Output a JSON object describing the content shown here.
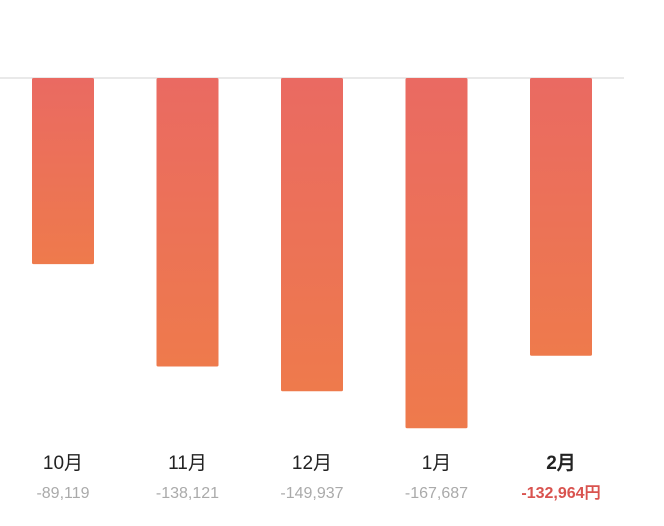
{
  "chart_data": {
    "type": "bar",
    "categories": [
      "10月",
      "11月",
      "12月",
      "1月",
      "2月"
    ],
    "values": [
      -89119,
      -138121,
      -149937,
      -167687,
      -132964
    ],
    "value_labels": [
      "-89,119",
      "-138,121",
      "-149,937",
      "-167,687",
      "-132,964円"
    ],
    "color_top": "#ea6a62",
    "color_bottom": "#ee7a4c",
    "highlight_index": 4,
    "highlight_color": "#d9534f",
    "ylim": [
      -180000,
      0
    ]
  }
}
